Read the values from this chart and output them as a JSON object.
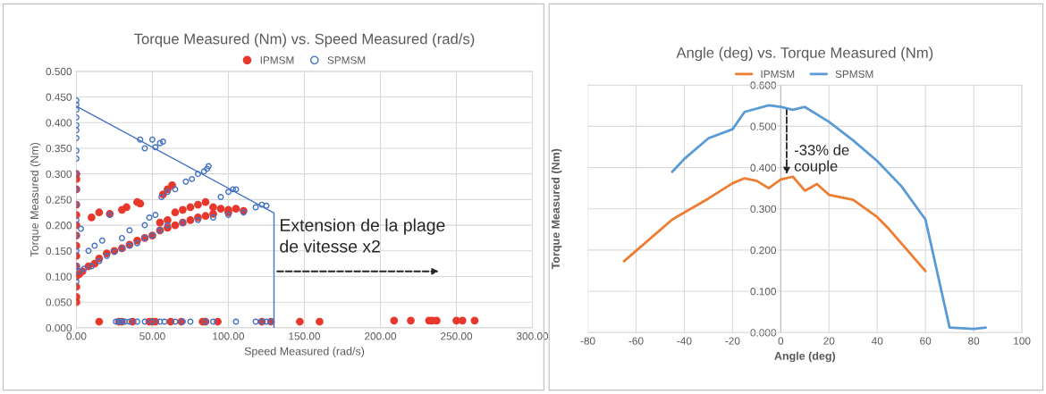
{
  "chart_data": [
    {
      "type": "scatter",
      "title": "Torque Measured (Nm) vs. Speed Measured (rad/s)",
      "xlabel": "Speed Measured (rad/s)",
      "ylabel": "Torque Measured (Nm)",
      "xlim": [
        0,
        300
      ],
      "xticks": [
        {
          "value": 0,
          "label": "0.00"
        },
        {
          "value": 50,
          "label": "50.00"
        },
        {
          "value": 100,
          "label": "100.00"
        },
        {
          "value": 150,
          "label": "150.00"
        },
        {
          "value": 200,
          "label": "200.00"
        },
        {
          "value": 250,
          "label": "250.00"
        },
        {
          "value": 300,
          "label": "300.00"
        }
      ],
      "ylim": [
        0,
        0.5
      ],
      "yticks": [
        {
          "value": 0,
          "label": "0.000"
        },
        {
          "value": 0.05,
          "label": "0.050"
        },
        {
          "value": 0.1,
          "label": "0.100"
        },
        {
          "value": 0.15,
          "label": "0.150"
        },
        {
          "value": 0.2,
          "label": "0.200"
        },
        {
          "value": 0.25,
          "label": "0.250"
        },
        {
          "value": 0.3,
          "label": "0.300"
        },
        {
          "value": 0.35,
          "label": "0.350"
        },
        {
          "value": 0.4,
          "label": "0.400"
        },
        {
          "value": 0.45,
          "label": "0.450"
        },
        {
          "value": 0.5,
          "label": "0.500"
        }
      ],
      "grid": true,
      "legend": "top",
      "marker": "circle",
      "annotations": [
        "Extension de la plage\nde vitesse x2"
      ],
      "series": [
        {
          "name": "IPMSM",
          "color": "#e8382c",
          "x": [
            0,
            0,
            0,
            0,
            0,
            0,
            0,
            0,
            0,
            0,
            0,
            0,
            0,
            0,
            2,
            4,
            8,
            12,
            15,
            20,
            25,
            30,
            35,
            40,
            45,
            50,
            55,
            60,
            65,
            70,
            75,
            80,
            85,
            90,
            100,
            110,
            55,
            60,
            65,
            70,
            75,
            80,
            85,
            90,
            95,
            100,
            105,
            10,
            15,
            22,
            30,
            33,
            40,
            42,
            57,
            60,
            63,
            15,
            28,
            30,
            37,
            48,
            50,
            52,
            62,
            69,
            83,
            85,
            93,
            122,
            128,
            147,
            160,
            209,
            220,
            232,
            234,
            237,
            250,
            254,
            262
          ],
          "values": [
            0.05,
            0.06,
            0.08,
            0.1,
            0.12,
            0.14,
            0.16,
            0.18,
            0.2,
            0.22,
            0.24,
            0.27,
            0.29,
            0.3,
            0.105,
            0.11,
            0.12,
            0.125,
            0.135,
            0.145,
            0.15,
            0.155,
            0.162,
            0.17,
            0.175,
            0.18,
            0.19,
            0.195,
            0.2,
            0.205,
            0.21,
            0.215,
            0.218,
            0.222,
            0.225,
            0.228,
            0.205,
            0.21,
            0.225,
            0.23,
            0.235,
            0.24,
            0.245,
            0.235,
            0.232,
            0.23,
            0.232,
            0.215,
            0.225,
            0.222,
            0.23,
            0.235,
            0.245,
            0.242,
            0.26,
            0.27,
            0.278,
            0.012,
            0.012,
            0.012,
            0.012,
            0.012,
            0.012,
            0.012,
            0.012,
            0.012,
            0.012,
            0.012,
            0.012,
            0.012,
            0.012,
            0.012,
            0.012,
            0.014,
            0.014,
            0.014,
            0.014,
            0.014,
            0.014,
            0.014,
            0.014
          ]
        },
        {
          "name": "SPMSM",
          "color": "#4472c4",
          "x": [
            0,
            0,
            0,
            0,
            0,
            0,
            0,
            0,
            0,
            0,
            0,
            0,
            0,
            0,
            0,
            0,
            0,
            3,
            2,
            5,
            10,
            15,
            20,
            25,
            30,
            35,
            40,
            45,
            50,
            55,
            60,
            70,
            80,
            90,
            100,
            110,
            118,
            122,
            125,
            8,
            12,
            17,
            22,
            30,
            35,
            45,
            48,
            52,
            56,
            60,
            65,
            72,
            76,
            80,
            84,
            86,
            87,
            95,
            100,
            103,
            105,
            42,
            45,
            50,
            52,
            55,
            57,
            26,
            28,
            30,
            32,
            35,
            40,
            45,
            50,
            55,
            58,
            65,
            70,
            75,
            85,
            90,
            105,
            118,
            122,
            125,
            128
          ],
          "values": [
            0.09,
            0.12,
            0.15,
            0.18,
            0.21,
            0.24,
            0.27,
            0.3,
            0.33,
            0.345,
            0.37,
            0.385,
            0.395,
            0.41,
            0.425,
            0.435,
            0.443,
            0.193,
            0.11,
            0.115,
            0.12,
            0.13,
            0.14,
            0.148,
            0.155,
            0.16,
            0.165,
            0.175,
            0.18,
            0.19,
            0.2,
            0.205,
            0.21,
            0.215,
            0.22,
            0.225,
            0.235,
            0.24,
            0.238,
            0.15,
            0.16,
            0.17,
            0.22,
            0.175,
            0.19,
            0.2,
            0.215,
            0.22,
            0.255,
            0.265,
            0.27,
            0.285,
            0.29,
            0.3,
            0.305,
            0.31,
            0.315,
            0.255,
            0.265,
            0.27,
            0.27,
            0.367,
            0.35,
            0.367,
            0.352,
            0.36,
            0.363,
            0.012,
            0.012,
            0.012,
            0.012,
            0.012,
            0.012,
            0.012,
            0.012,
            0.012,
            0.012,
            0.012,
            0.012,
            0.012,
            0.012,
            0.012,
            0.012,
            0.012,
            0.012,
            0.012,
            0.012
          ]
        },
        {
          "type": "line",
          "marker": "none",
          "color": "#4472c4",
          "x": [
            0,
            130,
            130
          ],
          "values": [
            0.432,
            0.224,
            0
          ]
        }
      ]
    },
    {
      "type": "line",
      "title": "Angle (deg) vs. Torque Measured (Nm)",
      "xlabel": "Angle (deg)",
      "ylabel": "Torque Measured (Nm)",
      "xlim": [
        -80,
        100
      ],
      "xticks": [
        -80,
        -60,
        -40,
        -20,
        0,
        20,
        40,
        60,
        80,
        100
      ],
      "ylim": [
        0,
        0.6
      ],
      "yticks": [
        {
          "value": 0,
          "label": "0.000"
        },
        {
          "value": 0.1,
          "label": "0.100"
        },
        {
          "value": 0.2,
          "label": "0.200"
        },
        {
          "value": 0.3,
          "label": "0.300"
        },
        {
          "value": 0.4,
          "label": "0.400"
        },
        {
          "value": 0.5,
          "label": "0.500"
        },
        {
          "value": 0.6,
          "label": "0.600"
        }
      ],
      "grid": true,
      "legend": "top",
      "annotations": [
        "-33% de\ncouple"
      ],
      "series": [
        {
          "name": "IPMSM",
          "color": "#ed7d31",
          "x": [
            -65,
            -45,
            -30,
            -20,
            -15,
            -10,
            -5,
            0,
            5,
            10,
            15,
            20,
            30,
            40,
            45,
            60
          ],
          "values": [
            0.173,
            0.274,
            0.325,
            0.362,
            0.374,
            0.368,
            0.35,
            0.371,
            0.378,
            0.344,
            0.36,
            0.334,
            0.322,
            0.28,
            0.25,
            0.149
          ]
        },
        {
          "name": "SPMSM",
          "color": "#5b9bd5",
          "x": [
            -45,
            -40,
            -30,
            -20,
            -15,
            -5,
            0,
            5,
            10,
            20,
            30,
            40,
            50,
            60,
            70,
            80,
            85
          ],
          "values": [
            0.39,
            0.421,
            0.471,
            0.493,
            0.535,
            0.551,
            0.547,
            0.54,
            0.547,
            0.511,
            0.466,
            0.416,
            0.355,
            0.274,
            0.012,
            0.009,
            0.012
          ]
        }
      ]
    }
  ]
}
